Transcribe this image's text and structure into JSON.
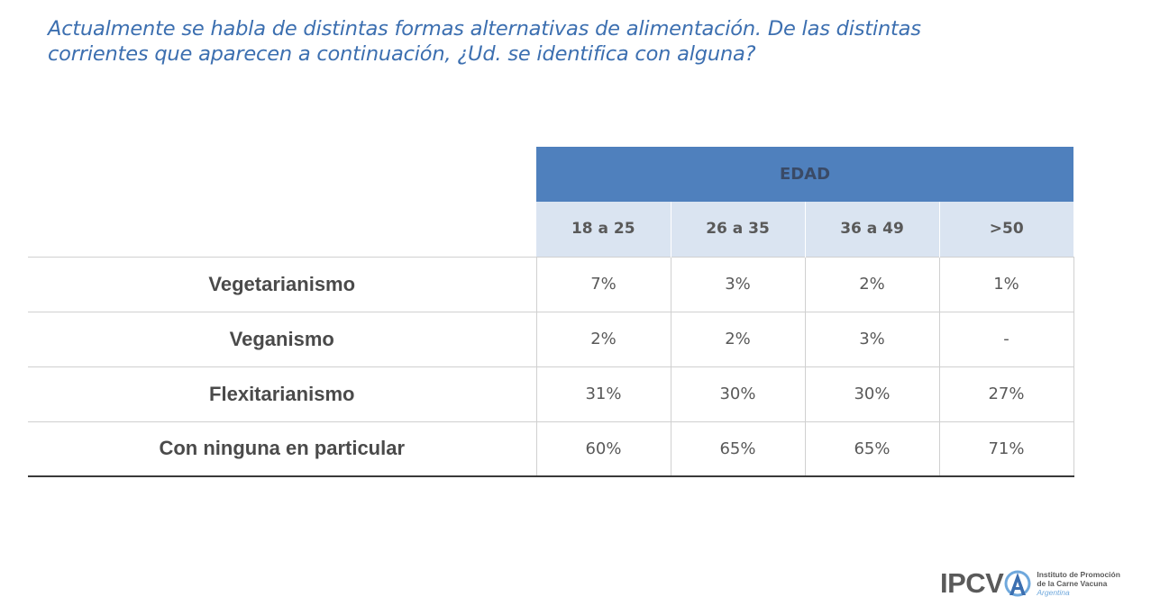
{
  "question": {
    "line1": "Actualmente se habla de distintas formas alternativas de alimentación. De las distintas",
    "line2": "corrientes que aparecen a continuación, ¿Ud. se identifica con alguna?"
  },
  "table": {
    "group_header": "EDAD",
    "columns": [
      "18 a 25",
      "26 a 35",
      "36 a 49",
      ">50"
    ],
    "rows": [
      {
        "label": "Vegetarianismo",
        "values": [
          "7%",
          "3%",
          "2%",
          "1%"
        ]
      },
      {
        "label": "Veganismo",
        "values": [
          "2%",
          "2%",
          "3%",
          "-"
        ]
      },
      {
        "label": "Flexitarianismo",
        "values": [
          "31%",
          "30%",
          "30%",
          "27%"
        ]
      },
      {
        "label": "Con ninguna en particular",
        "values": [
          "60%",
          "65%",
          "65%",
          "71%"
        ]
      }
    ]
  },
  "logo": {
    "mark": "IPCV",
    "line1": "Instituto de Promoción",
    "line2": "de la Carne Vacuna",
    "line3": "Argentina"
  },
  "colors": {
    "title": "#3c6fb0",
    "header_band": "#4f80bd",
    "subheader_band": "#dae4f1"
  }
}
